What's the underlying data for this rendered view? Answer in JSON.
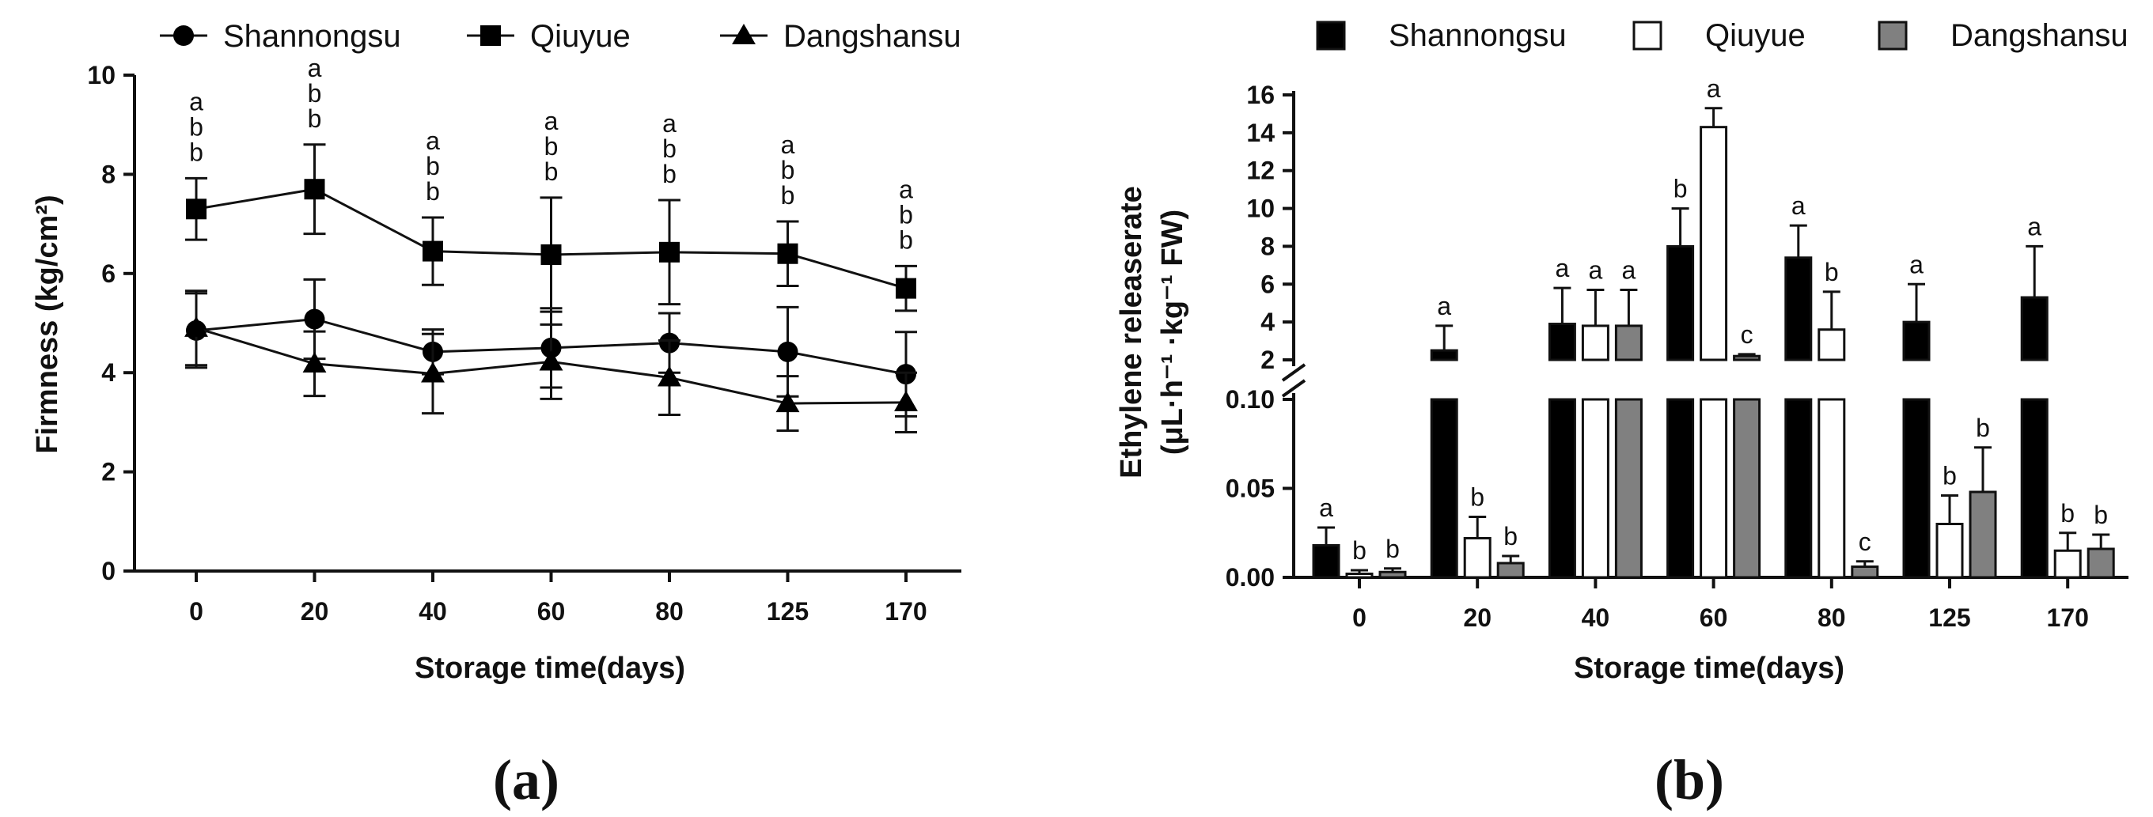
{
  "chart_data": [
    {
      "type": "line",
      "panel_label": "(a)",
      "categories": [
        "0",
        "20",
        "40",
        "60",
        "80",
        "125",
        "170"
      ],
      "xlabel": "Storage time(days)",
      "ylabel": "Firmness (kg/cm²)",
      "ylim": [
        0,
        10
      ],
      "yticks": [
        "0",
        "2",
        "4",
        "6",
        "8",
        "10"
      ],
      "legend_position": "top",
      "series": [
        {
          "name": "Shannongsu",
          "marker": "circle",
          "values": [
            4.85,
            5.08,
            4.42,
            4.5,
            4.6,
            4.42,
            3.97
          ],
          "errors": [
            0.75,
            0.8,
            0.45,
            0.8,
            0.6,
            0.9,
            0.85
          ]
        },
        {
          "name": "Qiuyue",
          "marker": "square",
          "values": [
            7.3,
            7.7,
            6.45,
            6.38,
            6.43,
            6.4,
            5.7
          ],
          "errors": [
            0.62,
            0.9,
            0.68,
            1.15,
            1.05,
            0.65,
            0.45
          ]
        },
        {
          "name": "Dangshansu",
          "marker": "triangle",
          "values": [
            4.9,
            4.18,
            3.98,
            4.22,
            3.9,
            3.38,
            3.4
          ],
          "errors": [
            0.75,
            0.65,
            0.8,
            0.75,
            0.75,
            0.55,
            0.6
          ]
        }
      ],
      "significance_letters": [
        [
          "a",
          "b",
          "b"
        ],
        [
          "a",
          "b",
          "b"
        ],
        [
          "a",
          "b",
          "b"
        ],
        [
          "a",
          "b",
          "b"
        ],
        [
          "a",
          "b",
          "b"
        ],
        [
          "a",
          "b",
          "b"
        ],
        [
          "a",
          "b",
          "b"
        ]
      ]
    },
    {
      "type": "bar",
      "panel_label": "(b)",
      "categories": [
        "0",
        "20",
        "40",
        "60",
        "80",
        "125",
        "170"
      ],
      "xlabel": "Storage time(days)",
      "ylabel_line1": "Ethylene releaserate",
      "ylabel_line2": "(μL·h⁻¹ ·kg⁻¹ FW)",
      "axis_break": true,
      "ylim_lower": [
        0,
        0.1
      ],
      "ylim_upper": [
        2,
        16
      ],
      "yticks_lower": [
        "0.00",
        "0.05",
        "0.10"
      ],
      "yticks_upper": [
        "2",
        "4",
        "6",
        "8",
        "10",
        "12",
        "14",
        "16"
      ],
      "legend_position": "top",
      "series": [
        {
          "name": "Shannongsu",
          "fill": "#000000",
          "values": [
            0.018,
            2.5,
            3.9,
            8.0,
            7.4,
            4.0,
            5.3
          ],
          "errors": [
            0.01,
            1.3,
            1.9,
            2.0,
            1.7,
            2.0,
            2.7
          ],
          "letters": [
            "a",
            "a",
            "a",
            "b",
            "a",
            "a",
            "a"
          ]
        },
        {
          "name": "Qiuyue",
          "fill": "#ffffff",
          "values": [
            0.002,
            0.022,
            3.8,
            14.3,
            3.6,
            0.03,
            0.015
          ],
          "errors": [
            0.002,
            0.012,
            1.9,
            1.0,
            2.0,
            0.016,
            0.01
          ],
          "letters": [
            "b",
            "b",
            "a",
            "a",
            "b",
            "b",
            "b"
          ]
        },
        {
          "name": "Dangshansu",
          "fill": "#808080",
          "values": [
            0.003,
            0.008,
            3.8,
            2.2,
            0.006,
            0.048,
            0.016
          ],
          "errors": [
            0.002,
            0.004,
            1.9,
            0.1,
            0.003,
            0.025,
            0.008
          ],
          "letters": [
            "b",
            "b",
            "a",
            "c",
            "c",
            "b",
            "b"
          ]
        }
      ]
    }
  ]
}
